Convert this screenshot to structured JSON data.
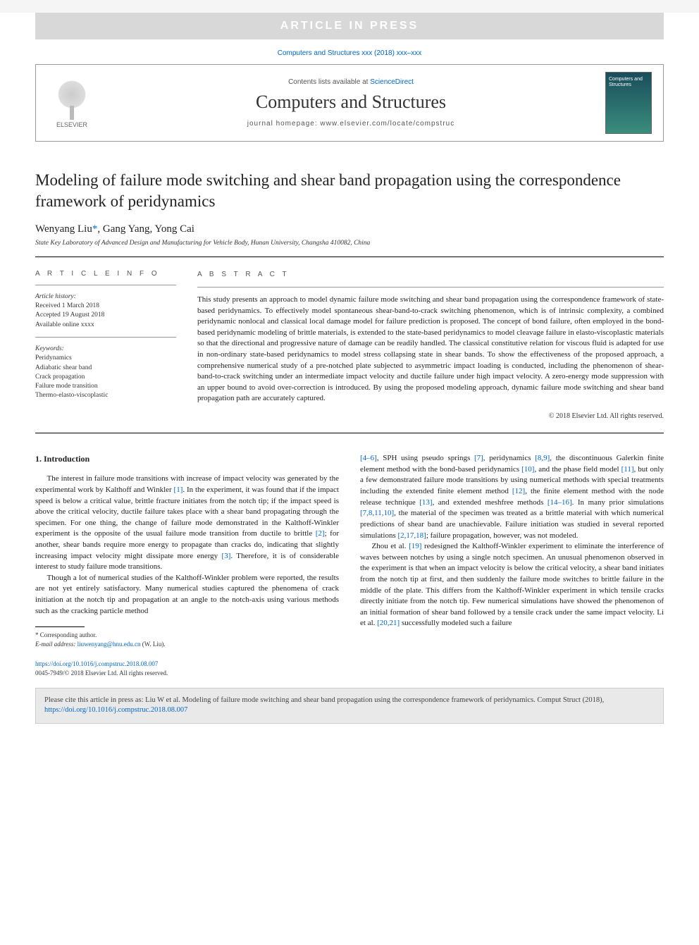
{
  "banner": "ARTICLE IN PRESS",
  "journal_ref": "Computers and Structures xxx (2018) xxx–xxx",
  "header": {
    "contents_prefix": "Contents lists available at ",
    "contents_link": "ScienceDirect",
    "journal_name": "Computers and Structures",
    "homepage_prefix": "journal homepage: ",
    "homepage_url": "www.elsevier.com/locate/compstruc",
    "publisher": "ELSEVIER",
    "cover_text": "Computers and Structures"
  },
  "article": {
    "title": "Modeling of failure mode switching and shear band propagation using the correspondence framework of peridynamics",
    "authors_html": "Wenyang Liu *, Gang Yang, Yong Cai",
    "author1": "Wenyang Liu",
    "corr_mark": "*",
    "author_sep1": ", ",
    "author2": "Gang Yang",
    "author_sep2": ", ",
    "author3": "Yong Cai",
    "affiliation": "State Key Laboratory of Advanced Design and Manufacturing for Vehicle Body, Hunan University, Changsha 410082, China"
  },
  "info": {
    "heading": "A R T I C L E   I N F O",
    "history_label": "Article history:",
    "received": "Received 1 March 2018",
    "accepted": "Accepted 19 August 2018",
    "available": "Available online xxxx",
    "keywords_label": "Keywords:",
    "kw1": "Peridynamics",
    "kw2": "Adiabatic shear band",
    "kw3": "Crack propagation",
    "kw4": "Failure mode transition",
    "kw5": "Thermo-elasto-viscoplastic"
  },
  "abstract": {
    "heading": "A B S T R A C T",
    "text": "This study presents an approach to model dynamic failure mode switching and shear band propagation using the correspondence framework of state-based peridynamics. To effectively model spontaneous shear-band-to-crack switching phenomenon, which is of intrinsic complexity, a combined peridynamic nonlocal and classical local damage model for failure prediction is proposed. The concept of bond failure, often employed in the bond-based peridynamic modeling of brittle materials, is extended to the state-based peridynamics to model cleavage failure in elasto-viscoplastic materials so that the directional and progressive nature of damage can be readily handled. The classical constitutive relation for viscous fluid is adapted for use in non-ordinary state-based peridynamics to model stress collapsing state in shear bands. To show the effectiveness of the proposed approach, a comprehensive numerical study of a pre-notched plate subjected to asymmetric impact loading is conducted, including the phenomenon of shear-band-to-crack switching under an intermediate impact velocity and ductile failure under high impact velocity. A zero-energy mode suppression with an upper bound to avoid over-correction is introduced. By using the proposed modeling approach, dynamic failure mode switching and shear band propagation path are accurately captured.",
    "copyright": "© 2018 Elsevier Ltd. All rights reserved."
  },
  "body": {
    "intro_heading": "1. Introduction",
    "p1a": "The interest in failure mode transitions with increase of impact velocity was generated by the experimental work by Kalthoff and Winkler ",
    "r1": "[1]",
    "p1b": ". In the experiment, it was found that if the impact speed is below a critical value, brittle fracture initiates from the notch tip; if the impact speed is above the critical velocity, ductile failure takes place with a shear band propagating through the specimen. For one thing, the change of failure mode demonstrated in the Kalthoff-Winkler experiment is the opposite of the usual failure mode transition from ductile to brittle ",
    "r2": "[2]",
    "p1c": "; for another, shear bands require more energy to propagate than cracks do, indicating that slightly increasing impact velocity might dissipate more energy ",
    "r3": "[3]",
    "p1d": ". Therefore, it is of considerable interest to study failure mode transitions.",
    "p2": "Though a lot of numerical studies of the Kalthoff-Winkler problem were reported, the results are not yet entirely satisfactory. Many numerical studies captured the phenomena of crack initiation at the notch tip and propagation at an angle to the notch-axis using various methods such as the cracking particle method",
    "r4": "[4–6]",
    "p3a": ", SPH using pseudo springs ",
    "r7": "[7]",
    "p3b": ", peridynamics ",
    "r89": "[8,9]",
    "p3c": ", the discontinuous Galerkin finite element method with the bond-based peridynamics ",
    "r10": "[10]",
    "p3d": ", and the phase field model ",
    "r11": "[11]",
    "p3e": ", but only a few demonstrated failure mode transitions by using numerical methods with special treatments including the extended finite element method ",
    "r12": "[12]",
    "p3f": ", the finite element method with the node release technique ",
    "r13": "[13]",
    "p3g": ", and extended meshfree methods ",
    "r14": "[14–16]",
    "p3h": ". In many prior simulations ",
    "r781110": "[7,8,11,10]",
    "p3i": ", the material of the specimen was treated as a brittle material with which numerical predictions of shear band are unachievable. Failure initiation was studied in several reported simulations ",
    "r21718": "[2,17,18]",
    "p3j": "; failure propagation, however, was not modeled.",
    "p4a": "Zhou et al. ",
    "r19": "[19]",
    "p4b": " redesigned the Kalthoff-Winkler experiment to eliminate the interference of waves between notches by using a single notch specimen. An unusual phenomenon observed in the experiment is that when an impact velocity is below the critical velocity, a shear band initiates from the notch tip at first, and then suddenly the failure mode switches to brittle failure in the middle of the plate. This differs from the Kalthoff-Winkler experiment in which tensile cracks directly initiate from the notch tip. Few numerical simulations have showed the phenomenon of an initial formation of shear band followed by a tensile crack under the same impact velocity. Li et al. ",
    "r2021": "[20,21]",
    "p4c": " successfully modeled such a failure"
  },
  "footnote": {
    "corr": "* Corresponding author.",
    "email_label": "E-mail address: ",
    "email": "liuwenyang@hnu.edu.cn",
    "email_who": " (W. Liu)."
  },
  "doi": {
    "url": "https://doi.org/10.1016/j.compstruc.2018.08.007",
    "issn": "0045-7949/© 2018 Elsevier Ltd. All rights reserved."
  },
  "cite": {
    "text": "Please cite this article in press as: Liu W et al. Modeling of failure mode switching and shear band propagation using the correspondence framework of peridynamics. Comput Struct (2018), ",
    "doi": "https://doi.org/10.1016/j.compstruc.2018.08.007"
  },
  "colors": {
    "banner_bg": "#d8d8d8",
    "banner_fg": "#ffffff",
    "link": "#0066cc",
    "cite_bg": "#e9e9e9",
    "cover_grad_top": "#1a4d5c",
    "cover_grad_bot": "#3a8d7c"
  }
}
